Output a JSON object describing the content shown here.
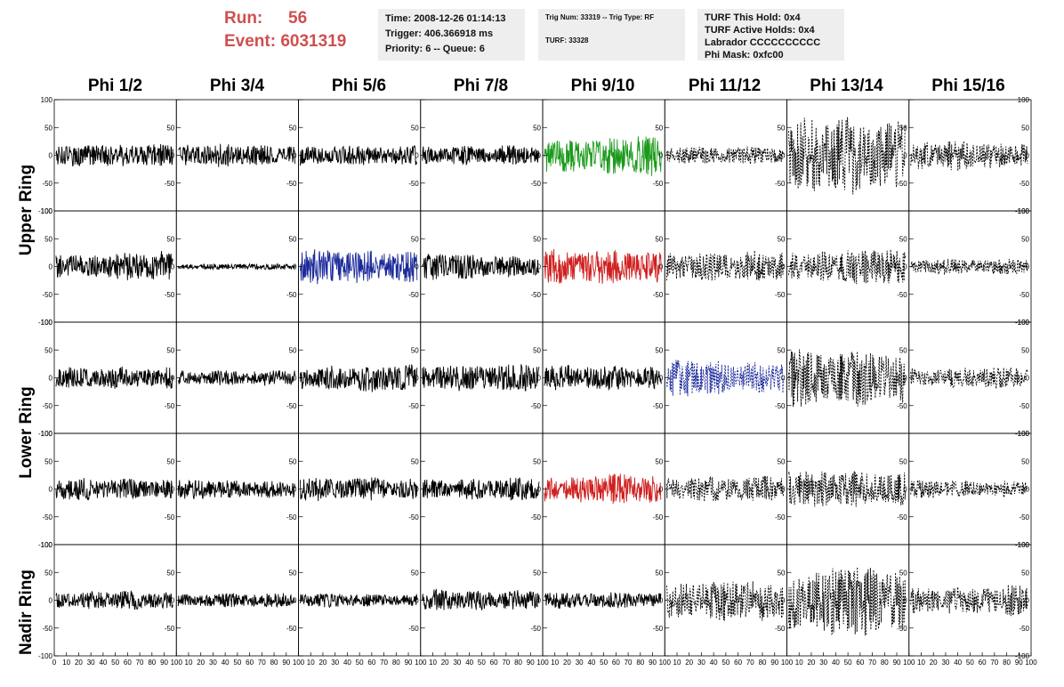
{
  "run_info": {
    "run_label": "Run:",
    "run_value": "56",
    "event_label": "Event:",
    "event_value": "6031319",
    "color": "#d04f4f"
  },
  "time_box": {
    "time": "Time: 2008-12-26 01:14:13",
    "trigger": "Trigger: 406.366918 ms",
    "priority": "Priority: 6 -- Queue: 6"
  },
  "trig_box": {
    "trig": "Trig Num: 33319 -- Trig Type: RF",
    "turf": "TURF: 33328"
  },
  "turf_box": {
    "this_hold": "TURF This Hold: 0x4",
    "active_holds": "TURF Active Holds: 0x4",
    "labrador": "Labrador CCCCCCCCCC",
    "phi_mask": "Phi Mask: 0xfc00"
  },
  "columns": [
    "Phi 1/2",
    "Phi 3/4",
    "Phi 5/6",
    "Phi 7/8",
    "Phi 9/10",
    "Phi 11/12",
    "Phi 13/14",
    "Phi 15/16"
  ],
  "rings": [
    {
      "label": "Upper Ring"
    },
    {
      "label": "Lower Ring"
    },
    {
      "label": "Nadir Ring"
    }
  ],
  "chart_data": {
    "type": "line",
    "description_rows": 5,
    "ylim": [
      -100,
      100
    ],
    "xlim": [
      0,
      100
    ],
    "y_ticks_outer": [
      100,
      50,
      0,
      -50,
      -100
    ],
    "y_ticks_inner": [
      50,
      0,
      -50
    ],
    "x_tick_labels": [
      "0",
      "10",
      "20",
      "30",
      "40",
      "50",
      "60",
      "70",
      "80",
      "90",
      "100"
    ],
    "colors": {
      "default": "#000000",
      "green": "#1a9a1a",
      "blue": "#1c2a9a",
      "red": "#d02020"
    },
    "panels": [
      [
        {
          "amp": 12,
          "color": "default",
          "dashed": false,
          "seed": 1
        },
        {
          "amp": 12,
          "color": "default",
          "dashed": false,
          "seed": 2
        },
        {
          "amp": 13,
          "color": "default",
          "dashed": false,
          "seed": 3
        },
        {
          "amp": 12,
          "color": "default",
          "dashed": false,
          "seed": 4
        },
        {
          "amp": 22,
          "color": "green",
          "dashed": false,
          "seed": 5
        },
        {
          "amp": 9,
          "color": "default",
          "dashed": true,
          "seed": 6
        },
        {
          "amp": 40,
          "color": "default",
          "dashed": true,
          "seed": 7
        },
        {
          "amp": 16,
          "color": "default",
          "dashed": true,
          "seed": 8
        }
      ],
      [
        {
          "amp": 16,
          "color": "default",
          "dashed": false,
          "seed": 11
        },
        {
          "amp": 3,
          "color": "default",
          "dashed": false,
          "seed": 12
        },
        {
          "amp": 18,
          "color": "blue",
          "dashed": false,
          "seed": 13
        },
        {
          "amp": 14,
          "color": "default",
          "dashed": false,
          "seed": 14
        },
        {
          "amp": 22,
          "color": "red",
          "dashed": false,
          "seed": 15
        },
        {
          "amp": 18,
          "color": "default",
          "dashed": true,
          "seed": 16
        },
        {
          "amp": 20,
          "color": "default",
          "dashed": true,
          "seed": 17
        },
        {
          "amp": 8,
          "color": "default",
          "dashed": true,
          "seed": 18
        }
      ],
      [
        {
          "amp": 14,
          "color": "default",
          "dashed": false,
          "seed": 21
        },
        {
          "amp": 9,
          "color": "default",
          "dashed": false,
          "seed": 22
        },
        {
          "amp": 15,
          "color": "default",
          "dashed": false,
          "seed": 23
        },
        {
          "amp": 14,
          "color": "default",
          "dashed": false,
          "seed": 24
        },
        {
          "amp": 14,
          "color": "default",
          "dashed": false,
          "seed": 25
        },
        {
          "amp": 20,
          "color": "blue",
          "dashed": true,
          "seed": 26
        },
        {
          "amp": 35,
          "color": "default",
          "dashed": true,
          "seed": 27
        },
        {
          "amp": 12,
          "color": "default",
          "dashed": true,
          "seed": 28
        }
      ],
      [
        {
          "amp": 12,
          "color": "default",
          "dashed": false,
          "seed": 31
        },
        {
          "amp": 11,
          "color": "default",
          "dashed": false,
          "seed": 32
        },
        {
          "amp": 14,
          "color": "default",
          "dashed": false,
          "seed": 33
        },
        {
          "amp": 12,
          "color": "default",
          "dashed": false,
          "seed": 34
        },
        {
          "amp": 16,
          "color": "red",
          "dashed": false,
          "seed": 35
        },
        {
          "amp": 14,
          "color": "default",
          "dashed": true,
          "seed": 36
        },
        {
          "amp": 22,
          "color": "default",
          "dashed": true,
          "seed": 37
        },
        {
          "amp": 10,
          "color": "default",
          "dashed": true,
          "seed": 38
        }
      ],
      [
        {
          "amp": 10,
          "color": "default",
          "dashed": false,
          "seed": 41
        },
        {
          "amp": 8,
          "color": "default",
          "dashed": false,
          "seed": 42
        },
        {
          "amp": 8,
          "color": "default",
          "dashed": false,
          "seed": 43
        },
        {
          "amp": 12,
          "color": "default",
          "dashed": false,
          "seed": 44
        },
        {
          "amp": 9,
          "color": "default",
          "dashed": false,
          "seed": 45
        },
        {
          "amp": 22,
          "color": "default",
          "dashed": true,
          "seed": 46
        },
        {
          "amp": 38,
          "color": "default",
          "dashed": true,
          "seed": 47
        },
        {
          "amp": 18,
          "color": "default",
          "dashed": true,
          "seed": 48
        }
      ]
    ]
  }
}
